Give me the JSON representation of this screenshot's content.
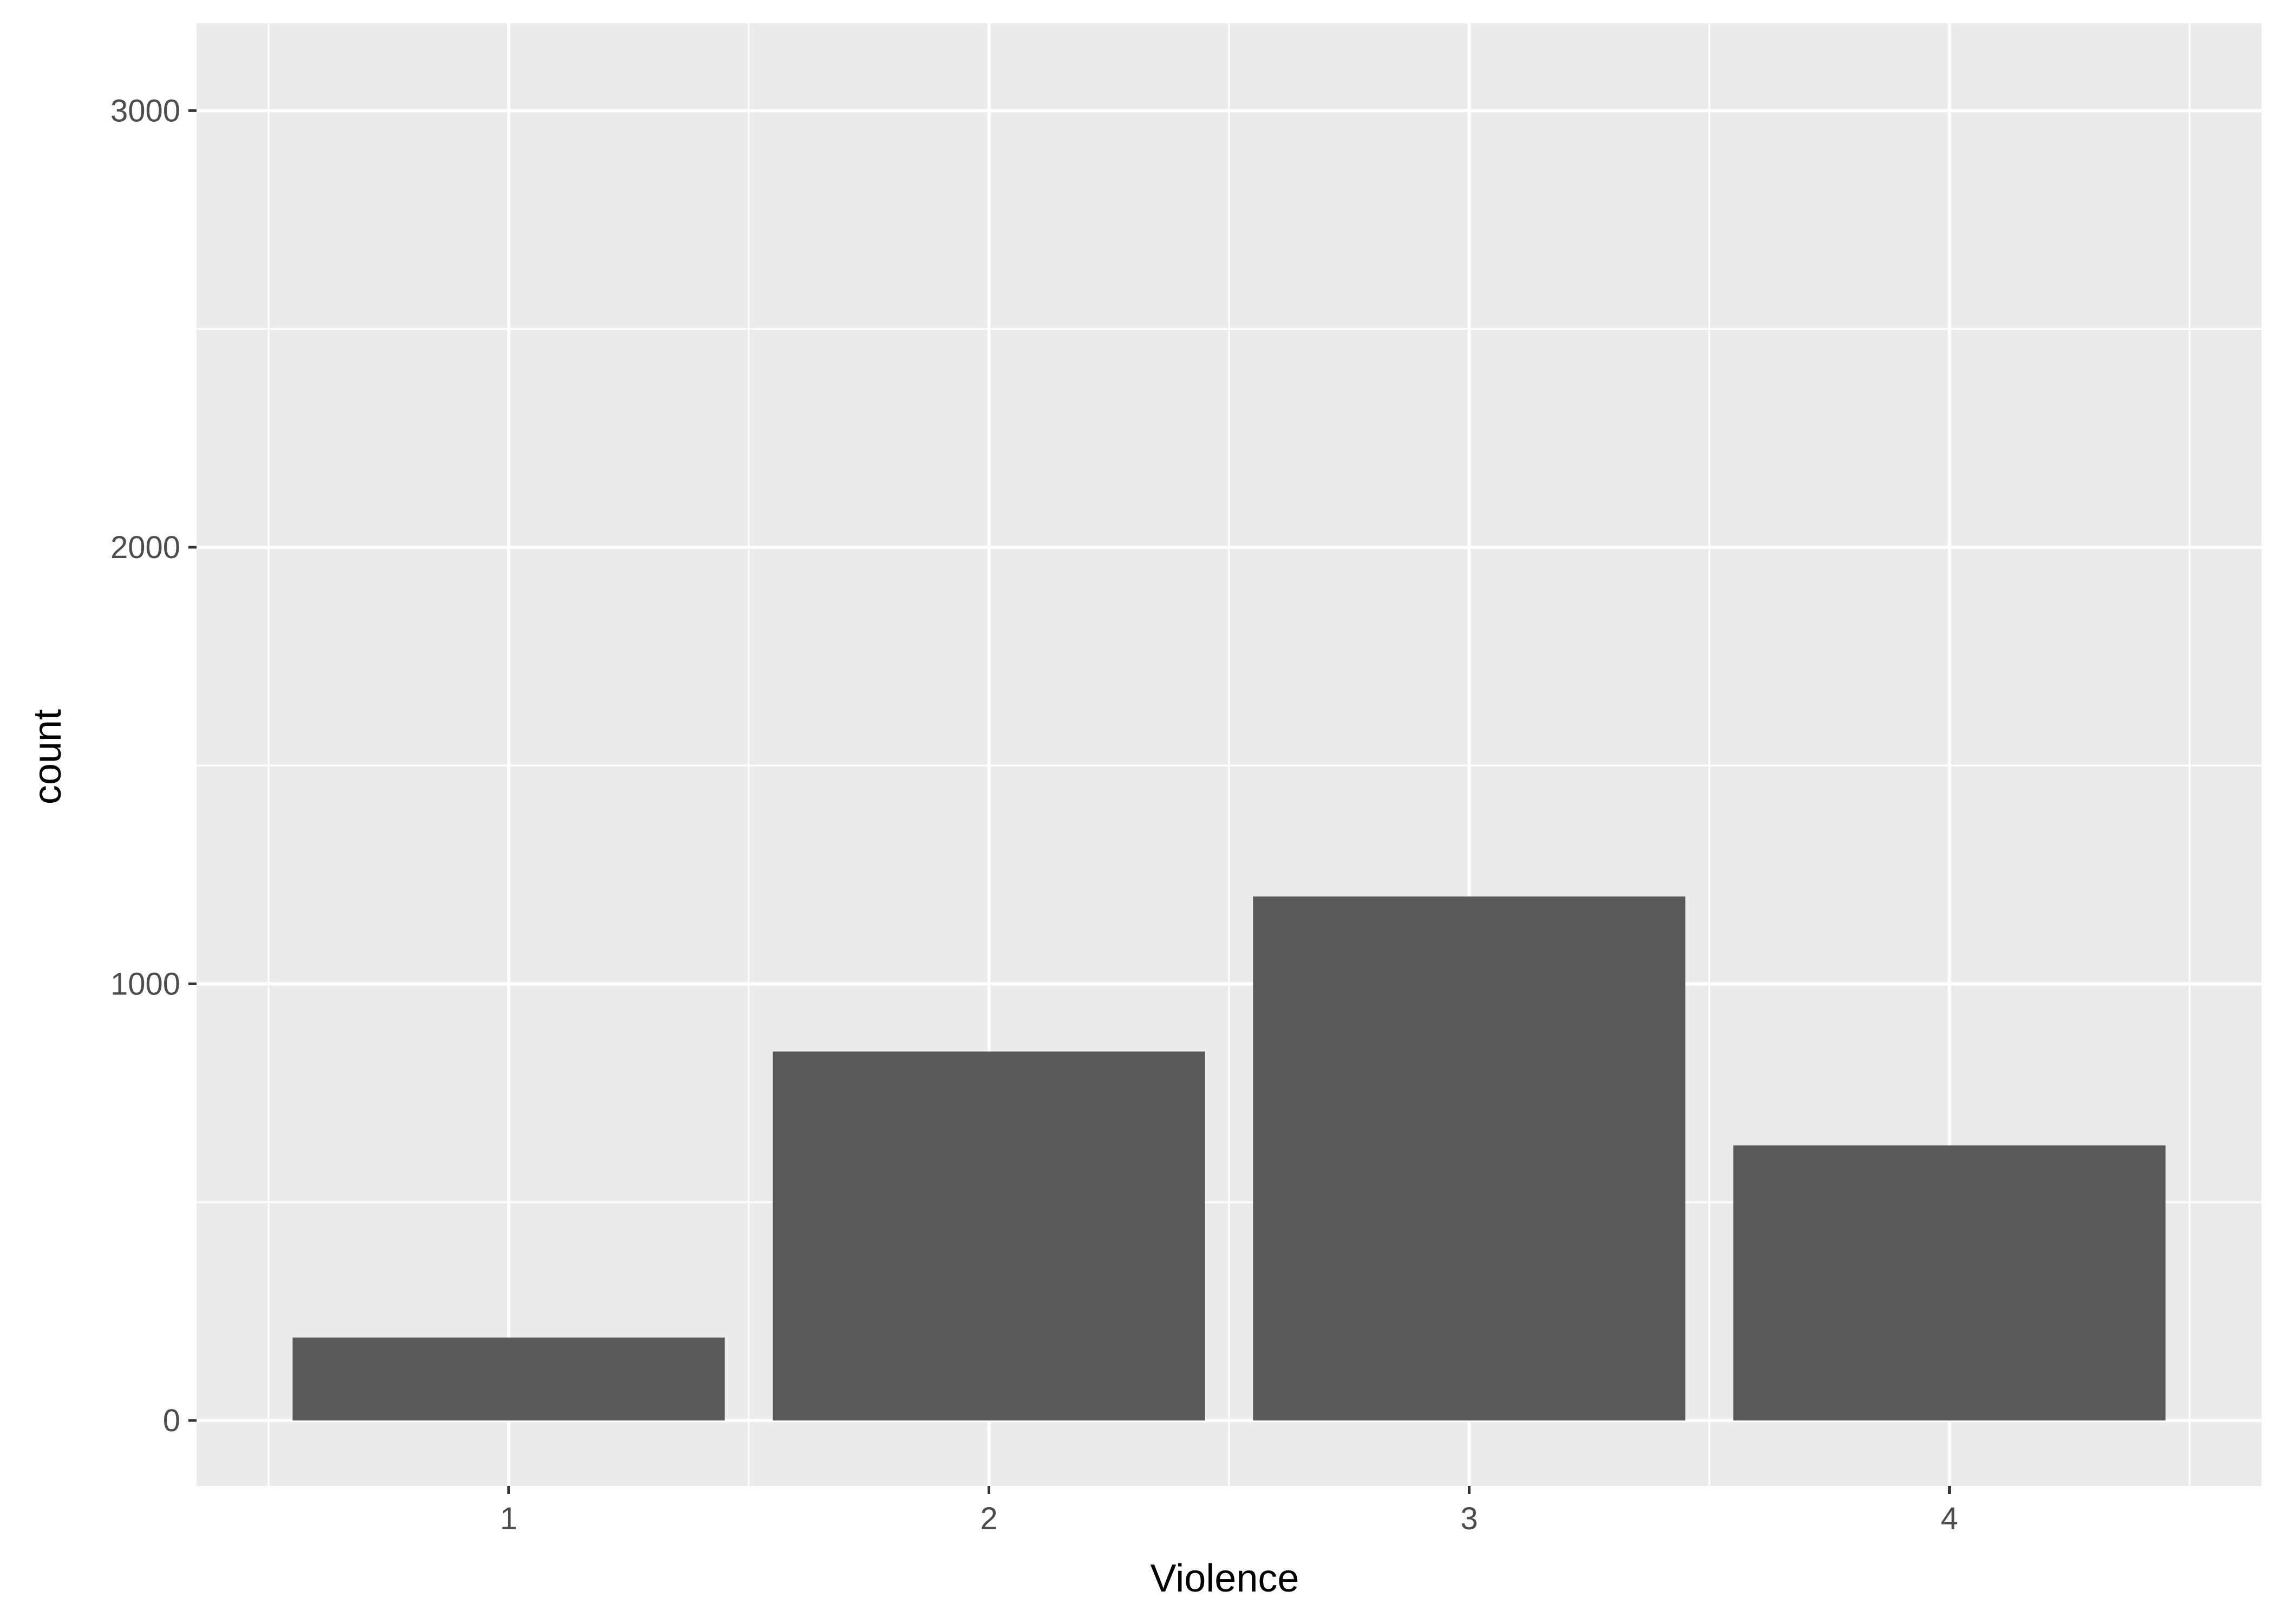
{
  "chart_data": {
    "type": "bar",
    "categories": [
      "1",
      "2",
      "3",
      "4"
    ],
    "values": [
      190,
      845,
      1200,
      630
    ],
    "title": "",
    "xlabel": "Violence",
    "ylabel": "count",
    "ylim": [
      -150,
      3200
    ],
    "xlim": [
      0.35,
      4.65
    ],
    "yticks": [
      0,
      1000,
      2000,
      3000
    ],
    "ytick_labels": [
      "0",
      "1000",
      "2000",
      "3000"
    ],
    "yminor": [
      500,
      1500,
      2500
    ],
    "xminor": [
      0.5,
      1.5,
      2.5,
      3.5,
      4.5
    ],
    "grid": true,
    "bar_width": 0.9,
    "colors": {
      "panel": "#ebebeb",
      "grid": "#ffffff",
      "bar": "#595959",
      "tick": "#333333"
    }
  }
}
